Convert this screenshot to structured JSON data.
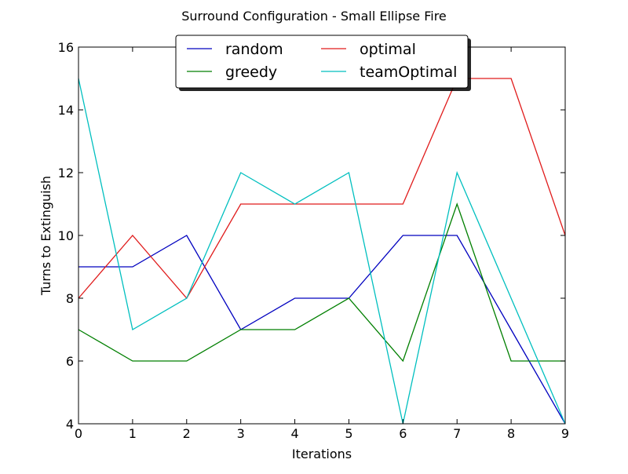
{
  "chart_data": {
    "type": "line",
    "title": "Surround Configuration - Small Ellipse Fire",
    "xlabel": "Iterations",
    "ylabel": "Turns to Extinguish",
    "x": [
      0,
      1,
      2,
      3,
      4,
      5,
      6,
      7,
      8,
      9
    ],
    "xlim": [
      0,
      9
    ],
    "ylim": [
      4,
      16
    ],
    "xticks": [
      0,
      1,
      2,
      3,
      4,
      5,
      6,
      7,
      8,
      9
    ],
    "yticks": [
      4,
      6,
      8,
      10,
      12,
      14,
      16
    ],
    "grid": false,
    "legend_position": "upper center",
    "series": [
      {
        "name": "random",
        "color": "#0000bf",
        "values": [
          9,
          9,
          10,
          7,
          8,
          8,
          10,
          10,
          7,
          4
        ]
      },
      {
        "name": "greedy",
        "color": "#007f00",
        "values": [
          7,
          6,
          6,
          7,
          7,
          8,
          6,
          11,
          6,
          6
        ]
      },
      {
        "name": "optimal",
        "color": "#e01b1b",
        "values": [
          8,
          10,
          8,
          11,
          11,
          11,
          11,
          15,
          15,
          10
        ]
      },
      {
        "name": "teamOptimal",
        "color": "#00bfbf",
        "values": [
          15,
          7,
          8,
          12,
          11,
          12,
          4,
          12,
          8,
          4
        ]
      }
    ]
  }
}
